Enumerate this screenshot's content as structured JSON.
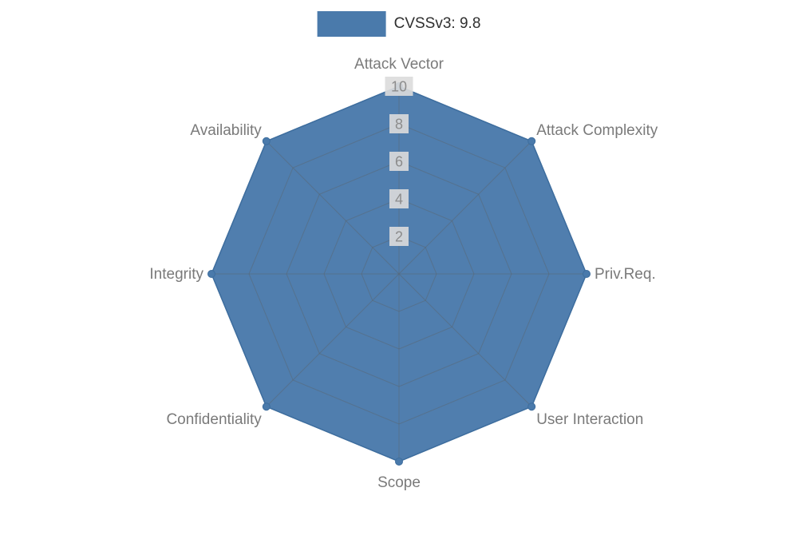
{
  "legend": {
    "label": "CVSSv3: 9.8",
    "color": "#4a7aab"
  },
  "chart_data": {
    "type": "radar",
    "title": "CVSSv3: 9.8",
    "categories": [
      "Attack Vector",
      "Attack Complexity",
      "Priv.Req.",
      "User Interaction",
      "Scope",
      "Confidentiality",
      "Integrity",
      "Availability"
    ],
    "series": [
      {
        "name": "CVSSv3: 9.8",
        "values": [
          10,
          10,
          10,
          10,
          10,
          10,
          10,
          10
        ]
      }
    ],
    "radial_ticks": [
      2,
      4,
      6,
      8,
      10
    ],
    "range": [
      0,
      10
    ],
    "grid": true,
    "legend_position": "top-center",
    "fill_color": "#4a7aab",
    "outline_color": "#3d6d9e",
    "grid_color": "#5a6670",
    "axis_label_color": "#7a7a7a",
    "tick_label_color": "#8c8c8c",
    "tick_box_color": "#dcdcdc"
  }
}
